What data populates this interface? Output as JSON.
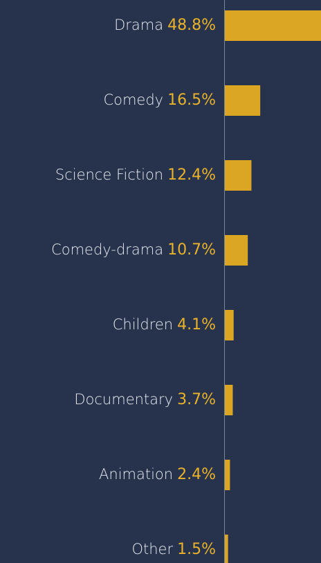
{
  "chart_data": {
    "type": "bar",
    "orientation": "horizontal",
    "categories": [
      "Drama",
      "Comedy",
      "Science Fiction",
      "Comedy-drama",
      "Children",
      "Documentary",
      "Animation",
      "Other"
    ],
    "values": [
      48.8,
      16.5,
      12.4,
      10.7,
      4.1,
      3.7,
      2.4,
      1.5
    ],
    "value_labels": [
      "48.8%",
      "16.5%",
      "12.4%",
      "10.7%",
      "4.1%",
      "3.7%",
      "2.4%",
      "1.5%"
    ],
    "color": "#dba624"
  }
}
